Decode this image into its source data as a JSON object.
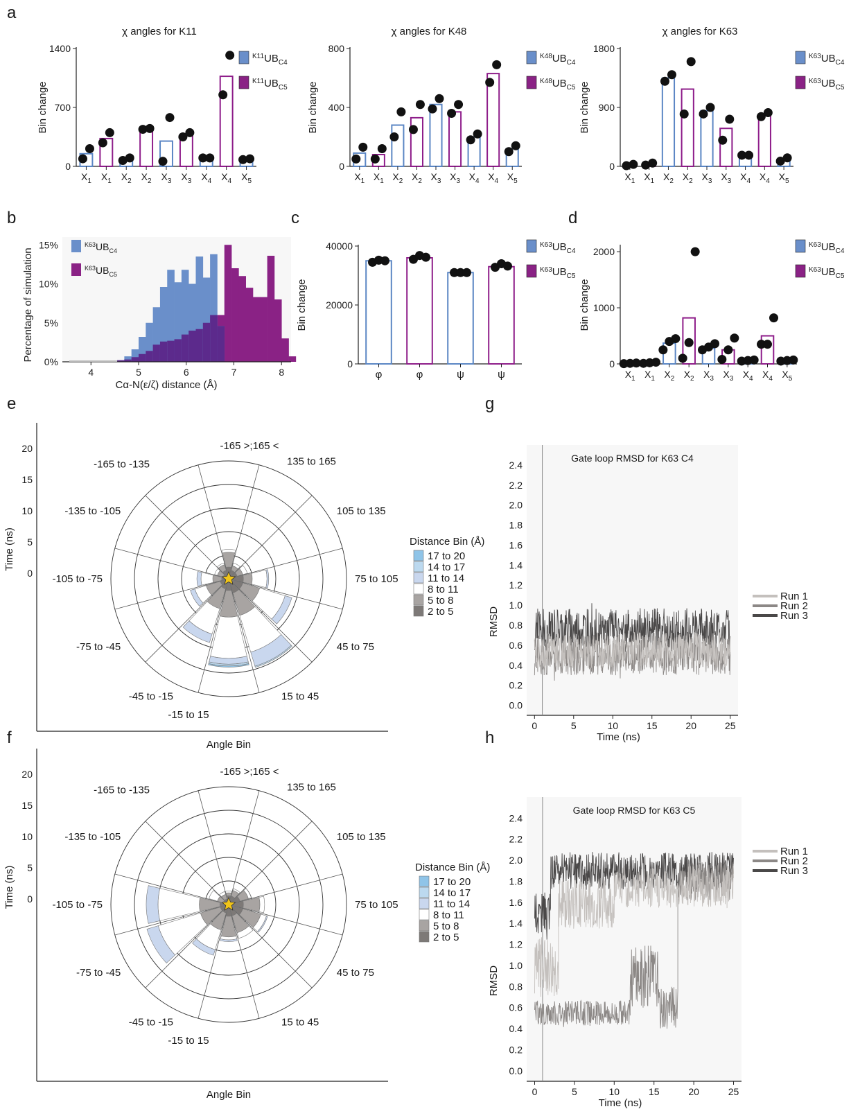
{
  "colors": {
    "c4": "#5b86c4",
    "c5": "#8e1d8a",
    "c4_fill": "#6a8fca",
    "c5_fill": "#8a2285",
    "overlap_fill": "#5c2a8c",
    "dot": "#111111",
    "dist_17_20": "#8fc4e8",
    "dist_14_17": "#bcd9ef",
    "dist_11_14": "#c9d7ee",
    "dist_8_11": "#ffffff",
    "dist_5_8": "#a8a4a2",
    "dist_2_5": "#7d7977",
    "run1": "#c4c0bd",
    "run2": "#8c8886",
    "run3": "#4a4848",
    "star": "#f0c419"
  },
  "chart_data": [
    {
      "panel": "a",
      "id": "a1",
      "type": "bar",
      "title": "χ angles for K11",
      "ylabel": "Bin change",
      "ylim": [
        0,
        1400
      ],
      "yticks": [
        "0",
        "700",
        "1400"
      ],
      "categories": [
        "X1",
        "X1",
        "X2",
        "X2",
        "X3",
        "X3",
        "X4",
        "X4",
        "X5"
      ],
      "group": [
        "c4",
        "c5",
        "c4",
        "c5",
        "c4",
        "c5",
        "c4",
        "c5",
        "c4"
      ],
      "values": [
        150,
        330,
        80,
        440,
        300,
        370,
        100,
        1070,
        80
      ],
      "points": [
        [
          90,
          210
        ],
        [
          280,
          400
        ],
        [
          70,
          100
        ],
        [
          440,
          450
        ],
        [
          60,
          580
        ],
        [
          350,
          400
        ],
        [
          100,
          100
        ],
        [
          850,
          1320
        ],
        [
          80,
          90
        ]
      ],
      "legend": [
        {
          "pre": "K11",
          "main": "UB",
          "sub": "C4"
        },
        {
          "pre": "K11",
          "main": "UB",
          "sub": "C5"
        }
      ]
    },
    {
      "panel": "",
      "id": "a2",
      "type": "bar",
      "title": "χ angles for K48",
      "ylabel": "Bin change",
      "ylim": [
        0,
        800
      ],
      "yticks": [
        "0",
        "400",
        "800"
      ],
      "categories": [
        "X1",
        "X1",
        "X2",
        "X2",
        "X3",
        "X3",
        "X4",
        "X4",
        "X5"
      ],
      "group": [
        "c4",
        "c5",
        "c4",
        "c5",
        "c4",
        "c5",
        "c4",
        "c5",
        "c4"
      ],
      "values": [
        90,
        80,
        280,
        330,
        420,
        370,
        200,
        630,
        120
      ],
      "points": [
        [
          50,
          130
        ],
        [
          50,
          120
        ],
        [
          200,
          370
        ],
        [
          250,
          420
        ],
        [
          390,
          460
        ],
        [
          360,
          420
        ],
        [
          180,
          220
        ],
        [
          570,
          690
        ],
        [
          100,
          140
        ]
      ],
      "legend": [
        {
          "pre": "K48",
          "main": "UB",
          "sub": "C4"
        },
        {
          "pre": "K48",
          "main": "UB",
          "sub": "C5"
        }
      ]
    },
    {
      "panel": "",
      "id": "a3",
      "type": "bar",
      "title": "χ angles for K63",
      "ylabel": "Bin change",
      "ylim": [
        0,
        1800
      ],
      "yticks": [
        "0",
        "900",
        "1800"
      ],
      "categories": [
        "X1",
        "X1",
        "X2",
        "X2",
        "X3",
        "X3",
        "X4",
        "X4",
        "X5"
      ],
      "group": [
        "c4",
        "c5",
        "c4",
        "c5",
        "c4",
        "c5",
        "c4",
        "c5",
        "c4"
      ],
      "values": [
        30,
        40,
        1350,
        1180,
        850,
        580,
        170,
        780,
        100
      ],
      "points": [
        [
          10,
          30
        ],
        [
          20,
          50
        ],
        [
          1300,
          1400
        ],
        [
          800,
          1600
        ],
        [
          800,
          900
        ],
        [
          400,
          720
        ],
        [
          170,
          170
        ],
        [
          760,
          820
        ],
        [
          80,
          130
        ]
      ],
      "legend": [
        {
          "pre": "K63",
          "main": "UB",
          "sub": "C4"
        },
        {
          "pre": "K63",
          "main": "UB",
          "sub": "C5"
        }
      ]
    },
    {
      "panel": "b",
      "id": "b",
      "type": "histogram",
      "xlabel": "Cα-N(ε/ζ) distance (Å)",
      "ylabel": "Percentage of simulation",
      "xlim": [
        3.4,
        8.2
      ],
      "ylim": [
        0,
        16
      ],
      "xticks": [
        "4",
        "5",
        "6",
        "7",
        "8"
      ],
      "yticks": [
        "0%",
        "5%",
        "10%",
        "15%"
      ],
      "bin_width": 0.15,
      "bin_start": 4.55,
      "c4_values": [
        0.2,
        0.7,
        1.6,
        3.2,
        5.0,
        7.0,
        9.6,
        11.8,
        10.2,
        11.8,
        10.0,
        13.5,
        10.8,
        13.8,
        4.6
      ],
      "c5_values": [
        0.2,
        0.3,
        0.6,
        1.0,
        1.4,
        2.2,
        2.6,
        2.7,
        2.9,
        3.5,
        4.0,
        4.2,
        5.0,
        6.0,
        6.0,
        15.0,
        12.0,
        11.0,
        9.5,
        8.3,
        8.3,
        13.6,
        8.0,
        3.0,
        0.7
      ],
      "legend": [
        {
          "pre": "K63",
          "main": "UB",
          "sub": "C4"
        },
        {
          "pre": "K63",
          "main": "UB",
          "sub": "C5"
        }
      ]
    },
    {
      "panel": "c",
      "id": "c",
      "type": "bar",
      "ylabel": "Bin change",
      "ylim": [
        0,
        40000
      ],
      "yticks": [
        "0",
        "20000",
        "40000"
      ],
      "categories": [
        "φ",
        "φ",
        "ψ",
        "ψ"
      ],
      "group": [
        "c4",
        "c5",
        "c4",
        "c5"
      ],
      "values": [
        35000,
        36000,
        31000,
        33000
      ],
      "points": [
        [
          34500,
          35200,
          35000
        ],
        [
          35500,
          36800,
          36200
        ],
        [
          31000,
          31000,
          31000
        ],
        [
          32800,
          34000,
          33200
        ]
      ],
      "legend": [
        {
          "pre": "K63",
          "main": "UB",
          "sub": "C4"
        },
        {
          "pre": "K63",
          "main": "UB",
          "sub": "C5"
        }
      ]
    },
    {
      "panel": "d",
      "id": "d",
      "type": "bar",
      "ylabel": "Bin change",
      "ylim": [
        0,
        2100
      ],
      "yticks": [
        "0",
        "1000",
        "2000"
      ],
      "categories": [
        "X1",
        "X1",
        "X2",
        "X2",
        "X3",
        "X3",
        "X4",
        "X4",
        "X5"
      ],
      "group": [
        "c4",
        "c5",
        "c4",
        "c5",
        "c4",
        "c5",
        "c4",
        "c5",
        "c4"
      ],
      "values": [
        10,
        20,
        370,
        820,
        280,
        250,
        60,
        500,
        60
      ],
      "points": [
        [
          5,
          10,
          15
        ],
        [
          10,
          20,
          30
        ],
        [
          250,
          400,
          450
        ],
        [
          100,
          380,
          2000
        ],
        [
          250,
          300,
          360
        ],
        [
          80,
          250,
          460
        ],
        [
          50,
          60,
          70
        ],
        [
          350,
          350,
          820
        ],
        [
          50,
          60,
          70
        ]
      ],
      "legend": [
        {
          "pre": "K63",
          "main": "UB",
          "sub": "C4"
        },
        {
          "pre": "K63",
          "main": "UB",
          "sub": "C5"
        }
      ]
    },
    {
      "panel": "e",
      "id": "e",
      "type": "polar",
      "ylabel": "Time (ns)",
      "xlabel": "Angle Bin",
      "yticks": [
        "20",
        "15",
        "10",
        "5",
        "0"
      ],
      "angle_labels": [
        "-165 >;165 <",
        "135 to 165",
        "105 to 135",
        "75 to 105",
        "45 to 75",
        "15 to 45",
        "-15 to 15",
        "-45 to -15",
        "-75 to -45",
        "-105 to -75",
        "-135 to -105",
        "-165 to -135"
      ],
      "legend_title": "Distance Bin (Å)",
      "legend_items": [
        "17 to 20",
        "14 to 17",
        "11 to 14",
        "8 to 11",
        "5 to 8",
        "2 to 5"
      ],
      "legend_keys": [
        "dist_17_20",
        "dist_14_17",
        "dist_11_14",
        "dist_8_11",
        "dist_5_8",
        "dist_2_5"
      ],
      "sectors": [
        {
          "bin": 0,
          "layers": [
            2,
            2.5,
            0.5,
            0,
            0,
            0
          ]
        },
        {
          "bin": 1,
          "layers": [
            1.5,
            0.8,
            0.5,
            0,
            0,
            0
          ]
        },
        {
          "bin": 2,
          "layers": [
            1.5,
            1.0,
            0.8,
            0,
            0,
            0
          ]
        },
        {
          "bin": 3,
          "layers": [
            2.5,
            1.5,
            2.5,
            0.3,
            0,
            0
          ]
        },
        {
          "bin": 4,
          "layers": [
            2.5,
            3.0,
            4.5,
            1.2,
            0,
            0
          ]
        },
        {
          "bin": 5,
          "layers": [
            2.5,
            4.0,
            6.5,
            2.5,
            0.2,
            0
          ]
        },
        {
          "bin": 6,
          "layers": [
            2.0,
            4.5,
            7.0,
            1.0,
            0.3,
            0.2
          ]
        },
        {
          "bin": 7,
          "layers": [
            1.8,
            3.5,
            4.5,
            1.5,
            0,
            0
          ]
        },
        {
          "bin": 8,
          "layers": [
            1.5,
            2.5,
            2.0,
            0.8,
            0,
            0
          ]
        },
        {
          "bin": 9,
          "layers": [
            1.2,
            1.5,
            2.0,
            0.7,
            0,
            0
          ]
        },
        {
          "bin": 10,
          "layers": [
            1.0,
            1.0,
            0.5,
            0,
            0,
            0
          ]
        },
        {
          "bin": 11,
          "layers": [
            1.5,
            1.0,
            0.3,
            0,
            0,
            0
          ]
        }
      ]
    },
    {
      "panel": "f",
      "id": "f",
      "type": "polar",
      "ylabel": "Time (ns)",
      "xlabel": "Angle Bin",
      "yticks": [
        "20",
        "15",
        "10",
        "5",
        "0"
      ],
      "angle_labels": [
        "-165 >;165 <",
        "135 to 165",
        "105 to 135",
        "75 to 105",
        "45 to 75",
        "15 to 45",
        "-15 to 15",
        "-45 to -15",
        "-75 to -45",
        "-105 to -75",
        "-135 to -105",
        "-165 to -135"
      ],
      "legend_title": "Distance Bin (Å)",
      "legend_items": [
        "17 to 20",
        "14 to 17",
        "11 to 14",
        "8 to 11",
        "5 to 8",
        "2 to 5"
      ],
      "legend_keys": [
        "dist_17_20",
        "dist_14_17",
        "dist_11_14",
        "dist_8_11",
        "dist_5_8",
        "dist_2_5"
      ],
      "sectors": [
        {
          "bin": 0,
          "layers": [
            1.5,
            0.5,
            0.3,
            0,
            0,
            0
          ]
        },
        {
          "bin": 1,
          "layers": [
            1.5,
            1.0,
            0.3,
            0,
            0,
            0
          ]
        },
        {
          "bin": 2,
          "layers": [
            2.0,
            1.5,
            0.5,
            0,
            0,
            0
          ]
        },
        {
          "bin": 3,
          "layers": [
            2.5,
            2.8,
            0.8,
            0,
            0,
            0
          ]
        },
        {
          "bin": 4,
          "layers": [
            2.5,
            3.2,
            1.0,
            0.2,
            0,
            0
          ]
        },
        {
          "bin": 5,
          "layers": [
            2.0,
            3.0,
            1.0,
            0,
            0,
            0
          ]
        },
        {
          "bin": 6,
          "layers": [
            2.0,
            3.5,
            0.5,
            0.3,
            0,
            0
          ]
        },
        {
          "bin": 7,
          "layers": [
            1.5,
            3.0,
            3.5,
            1.0,
            0,
            0
          ]
        },
        {
          "bin": 8,
          "layers": [
            1.5,
            3.5,
            7.5,
            2.0,
            0,
            0
          ]
        },
        {
          "bin": 9,
          "layers": [
            1.5,
            3.5,
            7.0,
            2.0,
            0,
            0
          ]
        },
        {
          "bin": 10,
          "layers": [
            1.0,
            1.0,
            1.5,
            0,
            0,
            0
          ]
        },
        {
          "bin": 11,
          "layers": [
            1.0,
            0.8,
            0.5,
            0,
            0,
            0
          ]
        }
      ]
    },
    {
      "panel": "g",
      "id": "g",
      "type": "line",
      "title": "Gate loop RMSD for K63 C4",
      "xlabel": "Time (ns)",
      "ylabel": "RMSD",
      "xlim": [
        -1,
        26
      ],
      "ylim": [
        -0.1,
        2.6
      ],
      "xticks": [
        "0",
        "5",
        "10",
        "15",
        "20",
        "25"
      ],
      "yticks": [
        "0.0",
        "0.2",
        "0.4",
        "0.6",
        "0.8",
        "1.0",
        "1.2",
        "1.4",
        "1.6",
        "1.8",
        "2.0",
        "2.2",
        "2.4"
      ],
      "series": [
        {
          "name": "Run 1",
          "segments": [
            {
              "t0": 0,
              "t1": 25,
              "mean": 0.55,
              "amp": 0.18
            }
          ]
        },
        {
          "name": "Run 2",
          "segments": [
            {
              "t0": 0,
              "t1": 25,
              "mean": 0.5,
              "amp": 0.2
            }
          ]
        },
        {
          "name": "Run 3",
          "segments": [
            {
              "t0": 0,
              "t1": 25,
              "mean": 0.75,
              "amp": 0.22
            }
          ]
        }
      ]
    },
    {
      "panel": "h",
      "id": "h",
      "type": "line",
      "title": "Gate loop RMSD for K63 C5",
      "xlabel": "Time (ns)",
      "ylabel": "RMSD",
      "xlim": [
        -1,
        26
      ],
      "ylim": [
        -0.1,
        2.6
      ],
      "xticks": [
        "0",
        "5",
        "10",
        "15",
        "20",
        "25"
      ],
      "yticks": [
        "0.0",
        "0.2",
        "0.4",
        "0.6",
        "0.8",
        "1.0",
        "1.2",
        "1.4",
        "1.6",
        "1.8",
        "2.0",
        "2.2",
        "2.4"
      ],
      "series": [
        {
          "name": "Run 1",
          "segments": [
            {
              "t0": 0,
              "t1": 3,
              "mean": 1.0,
              "amp": 0.3
            },
            {
              "t0": 3,
              "t1": 10,
              "mean": 1.6,
              "amp": 0.25
            },
            {
              "t0": 10,
              "t1": 25,
              "mean": 1.75,
              "amp": 0.2
            }
          ]
        },
        {
          "name": "Run 2",
          "segments": [
            {
              "t0": 0,
              "t1": 12,
              "mean": 0.55,
              "amp": 0.12
            },
            {
              "t0": 12,
              "t1": 15.5,
              "mean": 0.9,
              "amp": 0.3
            },
            {
              "t0": 15.5,
              "t1": 18,
              "mean": 0.6,
              "amp": 0.2
            },
            {
              "t0": 18,
              "t1": 25,
              "mean": 1.8,
              "amp": 0.18
            }
          ]
        },
        {
          "name": "Run 3",
          "segments": [
            {
              "t0": 0,
              "t1": 2,
              "mean": 1.5,
              "amp": 0.2
            },
            {
              "t0": 2,
              "t1": 25,
              "mean": 1.9,
              "amp": 0.18
            }
          ]
        }
      ]
    }
  ]
}
